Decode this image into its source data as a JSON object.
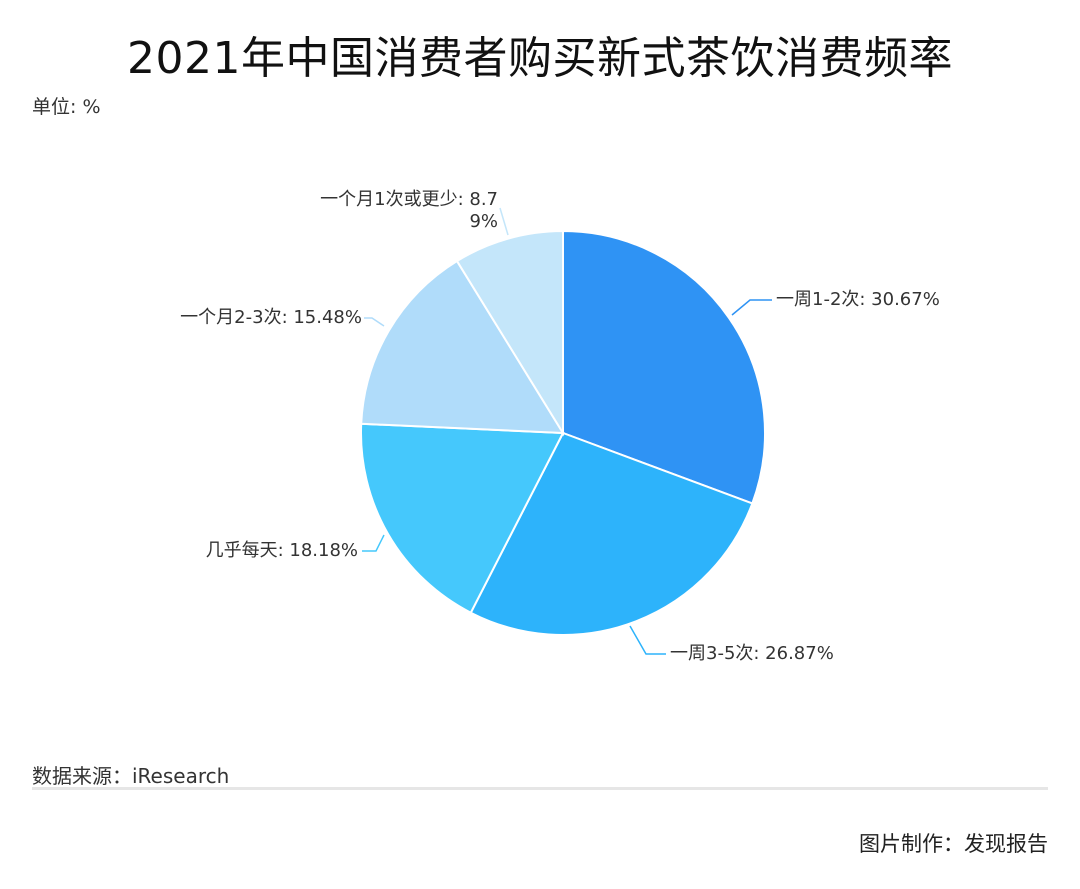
{
  "header": {
    "title": "2021年中国消费者购买新式茶饮消费频率",
    "unit_label": "单位: %"
  },
  "footer": {
    "source": "数据来源：iResearch",
    "credit": "图片制作：发现报告"
  },
  "chart_data": {
    "type": "pie",
    "title": "2021年中国消费者购买新式茶饮消费频率",
    "unit": "%",
    "start_angle_deg": 0,
    "direction": "clockwise",
    "slices": [
      {
        "name": "一周1-2次",
        "value": 30.67,
        "label": "一周1-2次: 30.67%",
        "color": "#2f93f4"
      },
      {
        "name": "一周3-5次",
        "value": 26.87,
        "label": "一周3-5次: 26.87%",
        "color": "#2db3fb"
      },
      {
        "name": "几乎每天",
        "value": 18.18,
        "label": "几乎每天: 18.18%",
        "color": "#45c8fc"
      },
      {
        "name": "一个月2-3次",
        "value": 15.48,
        "label": "一个月2-3次: 15.48%",
        "color": "#b0dcfa"
      },
      {
        "name": "一个月1次或更少",
        "value": 8.79,
        "label_lines": [
          "一个月1次或更少: 8.7",
          "9%"
        ],
        "color": "#c4e6fa"
      }
    ]
  }
}
